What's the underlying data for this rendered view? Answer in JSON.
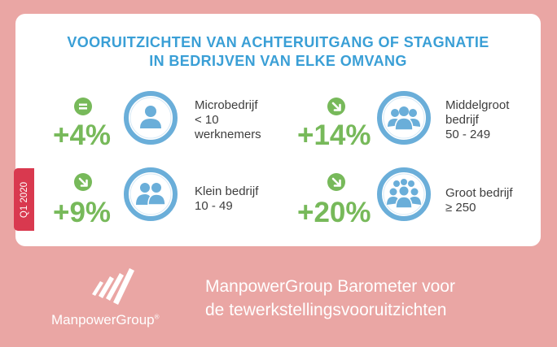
{
  "title": {
    "line1": "VOORUITZICHTEN VAN ACHTERUITGANG OF STAGNATIE",
    "line2": "IN BEDRIJVEN VAN ELKE OMVANG"
  },
  "quarter": "Q1 2020",
  "colors": {
    "background": "#eaa6a4",
    "card": "#ffffff",
    "title": "#3a9fd6",
    "positive": "#77b95a",
    "icon_ring": "#6aaed9",
    "quarter_tab": "#d9394f"
  },
  "items": [
    {
      "trend": "equal-icon",
      "value": "+4%",
      "icon": "single-person-icon",
      "label_lines": [
        "Microbedrijf",
        "< 10",
        "werknemers"
      ]
    },
    {
      "trend": "arrow-down-right-icon",
      "value": "+14%",
      "icon": "large-group-icon",
      "label_lines": [
        "Middelgroot",
        "bedrijf",
        "50 - 249"
      ]
    },
    {
      "trend": "arrow-down-right-icon",
      "value": "+9%",
      "icon": "two-persons-icon",
      "label_lines": [
        "Klein bedrijf",
        "10 - 49"
      ]
    },
    {
      "trend": "arrow-down-right-icon",
      "value": "+20%",
      "icon": "crowd-icon",
      "label_lines": [
        "Groot bedrijf",
        "≥ 250"
      ]
    }
  ],
  "footer": {
    "brand": "ManpowerGroup",
    "registered": "®",
    "tagline_line1": "ManpowerGroup Barometer voor",
    "tagline_line2": "de tewerkstellingsvooruitzichten"
  }
}
